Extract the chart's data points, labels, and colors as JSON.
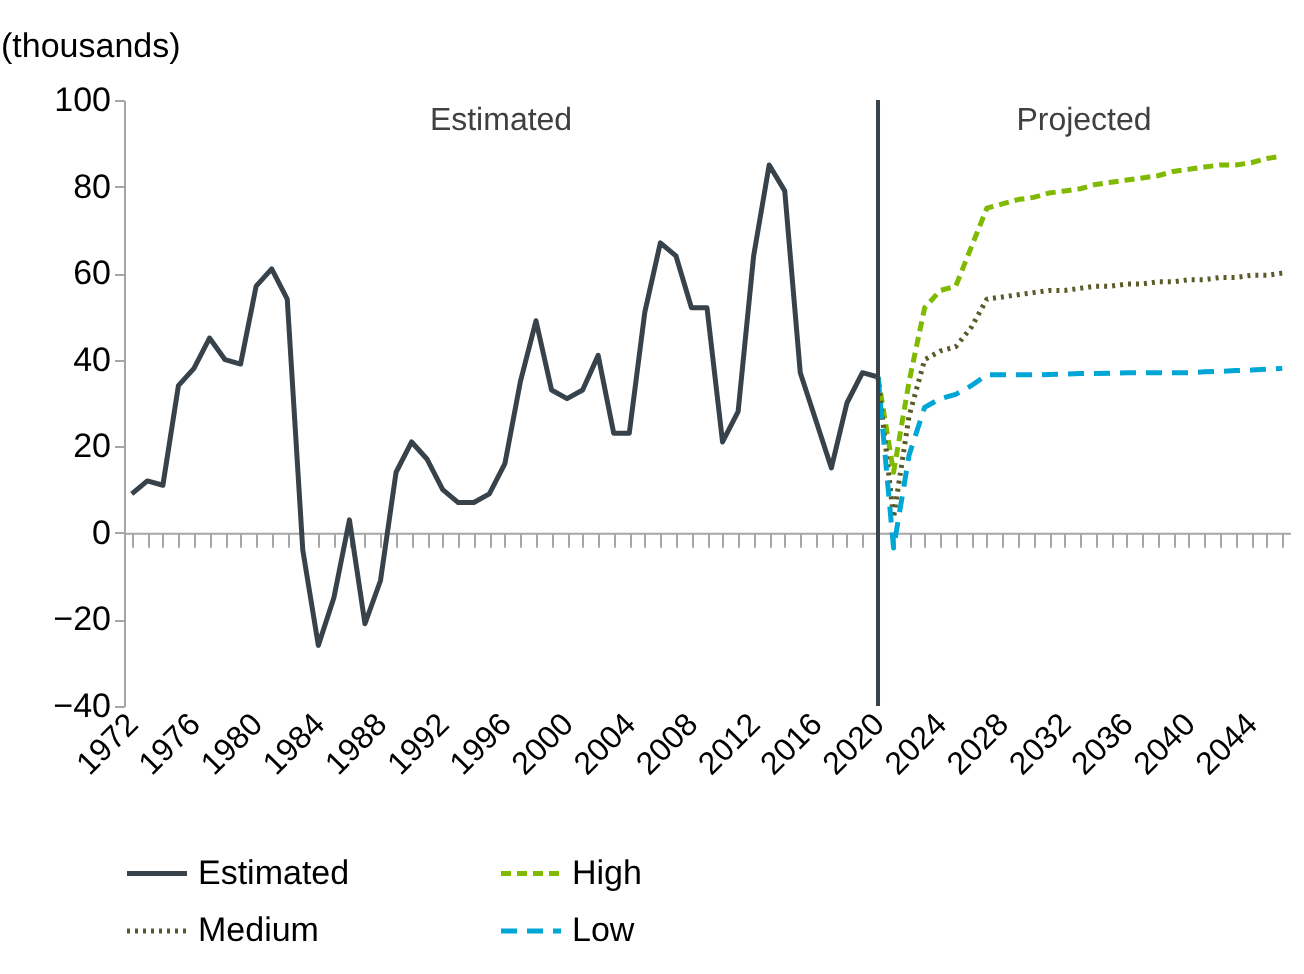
{
  "chart_data": {
    "type": "line",
    "ylabel": "(thousands)",
    "annotations": [
      "Estimated",
      "Projected"
    ],
    "xlim": [
      1971.5,
      2046.5
    ],
    "ylim": [
      -40,
      100
    ],
    "yticks": [
      -40,
      -20,
      0,
      20,
      40,
      60,
      80,
      100
    ],
    "xticks": [
      1972,
      {
        "value": 1973,
        "label": null
      },
      {
        "value": 1974,
        "label": null
      },
      {
        "value": 1975,
        "label": null
      },
      1976,
      {
        "value": 1977,
        "label": null
      },
      {
        "value": 1978,
        "label": null
      },
      {
        "value": 1979,
        "label": null
      },
      1980,
      {
        "value": 1981,
        "label": null
      },
      {
        "value": 1982,
        "label": null
      },
      {
        "value": 1983,
        "label": null
      },
      1984,
      {
        "value": 1985,
        "label": null
      },
      {
        "value": 1986,
        "label": null
      },
      {
        "value": 1987,
        "label": null
      },
      1988,
      {
        "value": 1989,
        "label": null
      },
      {
        "value": 1990,
        "label": null
      },
      {
        "value": 1991,
        "label": null
      },
      1992,
      {
        "value": 1993,
        "label": null
      },
      {
        "value": 1994,
        "label": null
      },
      {
        "value": 1995,
        "label": null
      },
      1996,
      {
        "value": 1997,
        "label": null
      },
      {
        "value": 1998,
        "label": null
      },
      {
        "value": 1999,
        "label": null
      },
      2000,
      {
        "value": 2001,
        "label": null
      },
      {
        "value": 2002,
        "label": null
      },
      {
        "value": 2003,
        "label": null
      },
      2004,
      {
        "value": 2005,
        "label": null
      },
      {
        "value": 2006,
        "label": null
      },
      {
        "value": 2007,
        "label": null
      },
      2008,
      {
        "value": 2009,
        "label": null
      },
      {
        "value": 2010,
        "label": null
      },
      {
        "value": 2011,
        "label": null
      },
      2012,
      {
        "value": 2013,
        "label": null
      },
      {
        "value": 2014,
        "label": null
      },
      {
        "value": 2015,
        "label": null
      },
      2016,
      {
        "value": 2017,
        "label": null
      },
      {
        "value": 2018,
        "label": null
      },
      {
        "value": 2019,
        "label": null
      },
      2020,
      {
        "value": 2021,
        "label": null
      },
      {
        "value": 2022,
        "label": null
      },
      {
        "value": 2023,
        "label": null
      },
      2024,
      {
        "value": 2025,
        "label": null
      },
      {
        "value": 2026,
        "label": null
      },
      {
        "value": 2027,
        "label": null
      },
      2028,
      {
        "value": 2029,
        "label": null
      },
      {
        "value": 2030,
        "label": null
      },
      {
        "value": 2031,
        "label": null
      },
      2032,
      {
        "value": 2033,
        "label": null
      },
      {
        "value": 2034,
        "label": null
      },
      {
        "value": 2035,
        "label": null
      },
      2036,
      {
        "value": 2037,
        "label": null
      },
      {
        "value": 2038,
        "label": null
      },
      {
        "value": 2039,
        "label": null
      },
      2040,
      {
        "value": 2041,
        "label": null
      },
      {
        "value": 2042,
        "label": null
      },
      {
        "value": 2043,
        "label": null
      },
      2044,
      {
        "value": 2045,
        "label": null
      },
      {
        "value": 2046,
        "label": null
      }
    ],
    "ref_lines": [
      {
        "axis": "x",
        "value": 2020,
        "color": "#37424a"
      }
    ],
    "legend": "bottom",
    "series": [
      {
        "name": "Estimated",
        "color": "#37424a",
        "line_style": "solid",
        "x": [
          1972,
          1973,
          1974,
          1975,
          1976,
          1977,
          1978,
          1979,
          1980,
          1981,
          1982,
          1983,
          1984,
          1985,
          1986,
          1987,
          1988,
          1989,
          1990,
          1991,
          1992,
          1993,
          1994,
          1995,
          1996,
          1997,
          1998,
          1999,
          2000,
          2001,
          2002,
          2003,
          2004,
          2005,
          2006,
          2007,
          2008,
          2009,
          2010,
          2011,
          2012,
          2013,
          2014,
          2015,
          2016,
          2017,
          2018,
          2019,
          2020
        ],
        "values": [
          9,
          12,
          11,
          34,
          38,
          45,
          40,
          39,
          57,
          61,
          54,
          -4,
          -26,
          -15,
          3,
          -21,
          -11,
          14,
          21,
          17,
          10,
          7,
          7,
          9,
          16,
          35,
          49,
          33,
          31,
          33,
          41,
          23,
          23,
          51,
          67,
          64,
          52,
          52,
          21,
          28,
          64,
          85,
          79,
          37,
          26,
          15,
          30,
          37,
          36
        ]
      },
      {
        "name": "High",
        "color": "#7fba00",
        "line_style": "dashed",
        "x": [
          2020,
          2021,
          2022,
          2023,
          2024,
          2025,
          2026,
          2027,
          2028,
          2029,
          2030,
          2031,
          2032,
          2033,
          2034,
          2035,
          2036,
          2037,
          2038,
          2039,
          2040,
          2041,
          2042,
          2043,
          2044,
          2045,
          2046
        ],
        "values": [
          36,
          14,
          35,
          52,
          56,
          57,
          66,
          75,
          76,
          77,
          77.5,
          78.5,
          79,
          79.5,
          80.5,
          81,
          81.5,
          82,
          82.5,
          83.5,
          84,
          84.5,
          85,
          85,
          85.5,
          86.5,
          87
        ]
      },
      {
        "name": "Medium",
        "color": "#5a5a28",
        "line_style": "dotted",
        "x": [
          2020,
          2021,
          2022,
          2023,
          2024,
          2025,
          2026,
          2027,
          2028,
          2029,
          2030,
          2031,
          2032,
          2033,
          2034,
          2035,
          2036,
          2037,
          2038,
          2039,
          2040,
          2041,
          2042,
          2043,
          2044,
          2045,
          2046
        ],
        "values": [
          36,
          3.5,
          27,
          40,
          42,
          43,
          47.5,
          54,
          54.5,
          55,
          55.5,
          56,
          56,
          56.5,
          57,
          57,
          57.5,
          57.5,
          58,
          58,
          58.5,
          58.5,
          59,
          59,
          59.5,
          59.5,
          60
        ]
      },
      {
        "name": "Low",
        "color": "#00a6d6",
        "line_style": "dashed",
        "x": [
          2020,
          2021,
          2022,
          2023,
          2024,
          2025,
          2026,
          2027,
          2028,
          2029,
          2030,
          2031,
          2032,
          2033,
          2034,
          2035,
          2036,
          2037,
          2038,
          2039,
          2040,
          2041,
          2042,
          2043,
          2044,
          2045,
          2046
        ],
        "values": [
          36,
          -3.5,
          18,
          29,
          31,
          32,
          34,
          36.5,
          36.5,
          36.5,
          36.5,
          36.6,
          36.7,
          36.8,
          36.8,
          36.9,
          37,
          37,
          37,
          37,
          37,
          37.2,
          37.3,
          37.5,
          37.6,
          37.8,
          38
        ]
      }
    ]
  }
}
